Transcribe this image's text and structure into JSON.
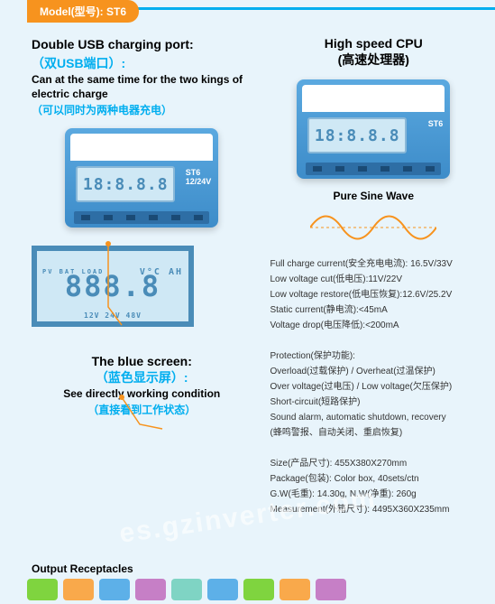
{
  "header": {
    "model_label": "Model(型号): ST6"
  },
  "left": {
    "title_en": "Double USB charging port:",
    "title_cn": "（双USB端口）:",
    "sub_en": "Can at the same time for the two kings of electric charge",
    "sub_cn": "（可以同时为两种电器充电）",
    "device_digits": "18:8.8.8",
    "device_model": "ST6",
    "device_voltage": "12/24V",
    "lcd_digits": "888.8",
    "lcd_left_labels": "PV\nBAT\nLOAD",
    "lcd_right_labels": "V°C\nAH",
    "lcd_bottom": "12V 24V 48V",
    "blue_screen_en": "The blue screen:",
    "blue_screen_cn": "（蓝色显示屏）:",
    "see_en": "See directly working condition",
    "see_cn": "（直接看到工作状态）",
    "output_label": "Output Receptacles"
  },
  "right": {
    "title_en": "High speed CPU",
    "title_cn": "(高速处理器)",
    "device_digits": "18:8.8.8",
    "device_model": "ST6",
    "sine_title": "Pure Sine Wave",
    "sine_color": "#f7931e",
    "specs": [
      "Full charge current(安全充电电流): 16.5V/33V",
      "Low voltage cut(低电压):11V/22V",
      "Low voltage restore(低电压恢复):12.6V/25.2V",
      "Static current(静电流):<45mA",
      "Voltage drop(电压降低):<200mA",
      "",
      "Protection(保护功能):",
      "Overload(过载保护) / Overheat(过温保护)",
      "Over voltage(过电压) / Low voltage(欠压保护)",
      "Short-circuit(短路保护)",
      "Sound alarm, automatic shutdown, recovery",
      "(蜂鸣警报、自动关闭、重启恢复)",
      "",
      "Size(产品尺寸): 455X380X270mm",
      "Package(包装): Color box, 40sets/ctn",
      "G.W(毛重): 14.30g, N.W(净重): 260g",
      "Measurement(外箱尺寸): 4495X360X235mm"
    ]
  },
  "receptacle_colors": [
    "#7fd43f",
    "#f9a94b",
    "#5db0e8",
    "#c67fc6",
    "#7fd4c4",
    "#5db0e8",
    "#7fd43f",
    "#f9a94b",
    "#c67fc6"
  ],
  "watermark": "es.gzinverter.com"
}
